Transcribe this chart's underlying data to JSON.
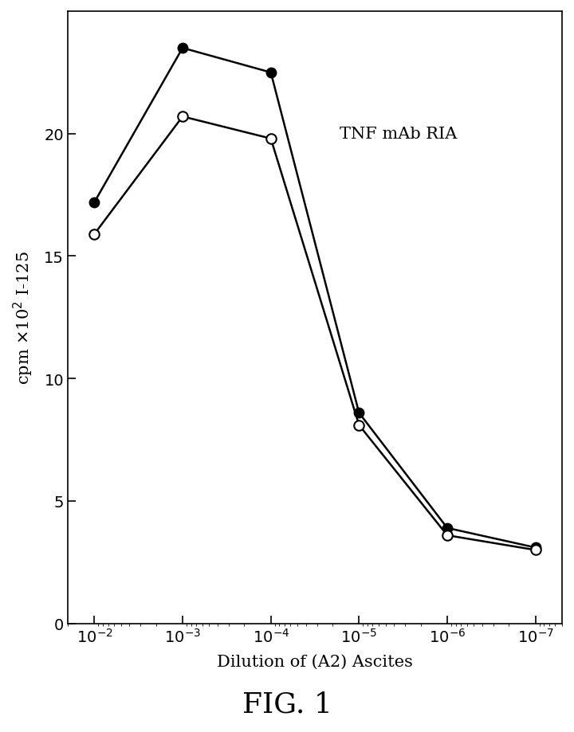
{
  "x_values": [
    0.01,
    0.001,
    0.0001,
    1e-05,
    1e-06,
    1e-07
  ],
  "series_filled": [
    17.2,
    23.5,
    22.5,
    8.6,
    3.9,
    3.1
  ],
  "series_open": [
    15.9,
    20.7,
    19.8,
    8.1,
    3.6,
    3.0
  ],
  "xlabel": "Dilution of (A2) Ascites",
  "ylabel": "cpm x10² I-125",
  "annotation": "TNF mAb RIA",
  "figure_label": "FIG. 1",
  "ylim": [
    0,
    25
  ],
  "yticks": [
    0,
    5,
    10,
    15,
    20
  ],
  "background_color": "#ffffff",
  "line_color": "#000000",
  "marker_size": 9,
  "linewidth": 1.8,
  "figwidth": 7.2,
  "figheight": 9.2
}
